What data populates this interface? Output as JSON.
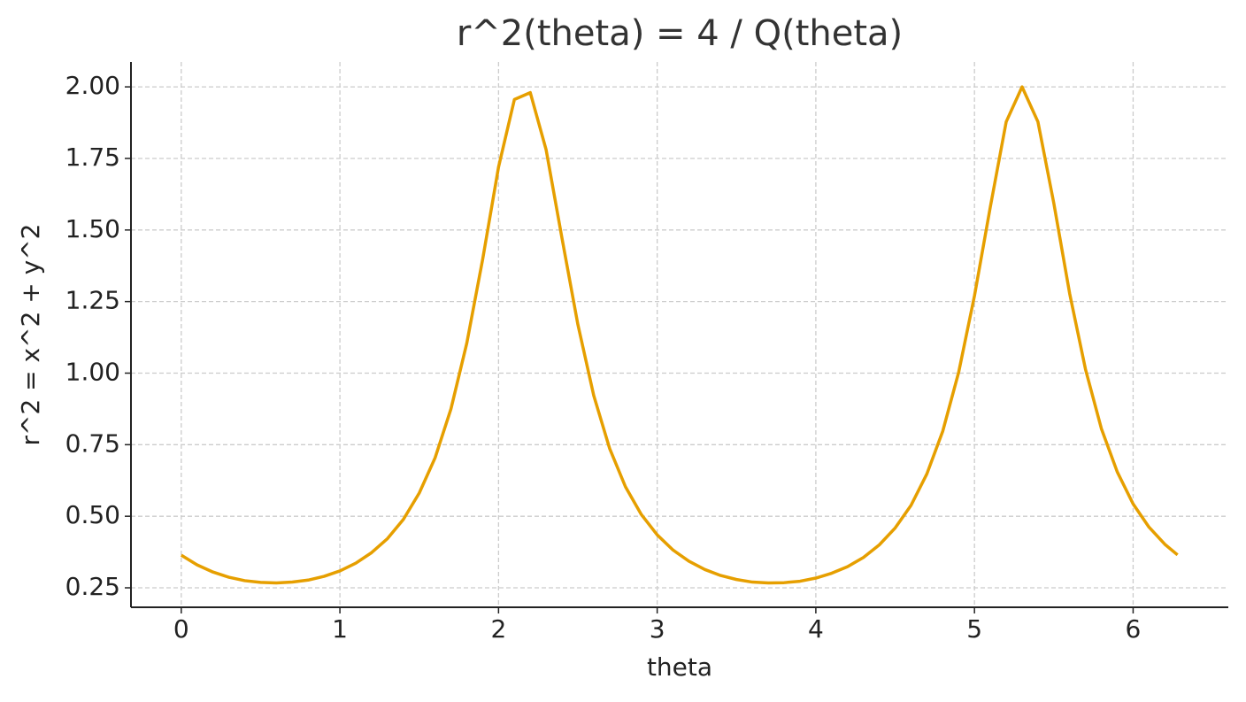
{
  "chart_data": {
    "type": "line",
    "title": "r^2(theta) = 4 / Q(theta)",
    "x_label": "theta",
    "y_label": "r^2 = x^2 + y^2",
    "x": [
      0,
      0.1,
      0.2,
      0.3,
      0.4,
      0.5,
      0.6,
      0.7,
      0.8,
      0.9,
      1.0,
      1.1,
      1.2,
      1.3,
      1.4,
      1.5,
      1.6,
      1.7,
      1.8,
      1.9,
      2.0,
      2.1,
      2.2,
      2.3,
      2.4,
      2.5,
      2.6,
      2.7,
      2.8,
      2.9,
      3.0,
      3.1,
      3.2,
      3.3,
      3.4,
      3.5,
      3.6,
      3.7,
      3.8,
      3.9,
      4.0,
      4.1,
      4.2,
      4.3,
      4.4,
      4.5,
      4.6,
      4.7,
      4.8,
      4.9,
      5.0,
      5.1,
      5.2,
      5.3,
      5.4,
      5.5,
      5.6,
      5.7,
      5.8,
      5.9,
      6.0,
      6.1,
      6.2,
      6.28
    ],
    "series": [
      {
        "color": "#e69f00",
        "values": [
          0.364,
          0.33,
          0.305,
          0.287,
          0.275,
          0.269,
          0.267,
          0.27,
          0.277,
          0.29,
          0.309,
          0.336,
          0.373,
          0.422,
          0.489,
          0.581,
          0.704,
          0.875,
          1.105,
          1.398,
          1.72,
          1.956,
          1.98,
          1.78,
          1.471,
          1.17,
          0.922,
          0.737,
          0.603,
          0.506,
          0.435,
          0.382,
          0.343,
          0.314,
          0.293,
          0.279,
          0.27,
          0.267,
          0.268,
          0.273,
          0.284,
          0.301,
          0.324,
          0.356,
          0.4,
          0.459,
          0.538,
          0.648,
          0.797,
          1.002,
          1.27,
          1.581,
          1.878,
          2.0,
          1.878,
          1.594,
          1.278,
          1.013,
          0.806,
          0.655,
          0.543,
          0.462,
          0.402,
          0.365
        ]
      }
    ],
    "xlim": [
      -0.317,
      6.6
    ],
    "ylim": [
      0.182,
      2.087
    ],
    "xticks": [
      0,
      1,
      2,
      3,
      4,
      5,
      6
    ],
    "yticks": [
      {
        "value": 0.25,
        "label": "0.25"
      },
      {
        "value": 0.5,
        "label": "0.50"
      },
      {
        "value": 0.75,
        "label": "0.75"
      },
      {
        "value": 1,
        "label": "1.00"
      },
      {
        "value": 1.25,
        "label": "1.25"
      },
      {
        "value": 1.5,
        "label": "1.50"
      },
      {
        "value": 1.75,
        "label": "1.75"
      },
      {
        "value": 2,
        "label": "2.00"
      }
    ],
    "grid": true
  }
}
